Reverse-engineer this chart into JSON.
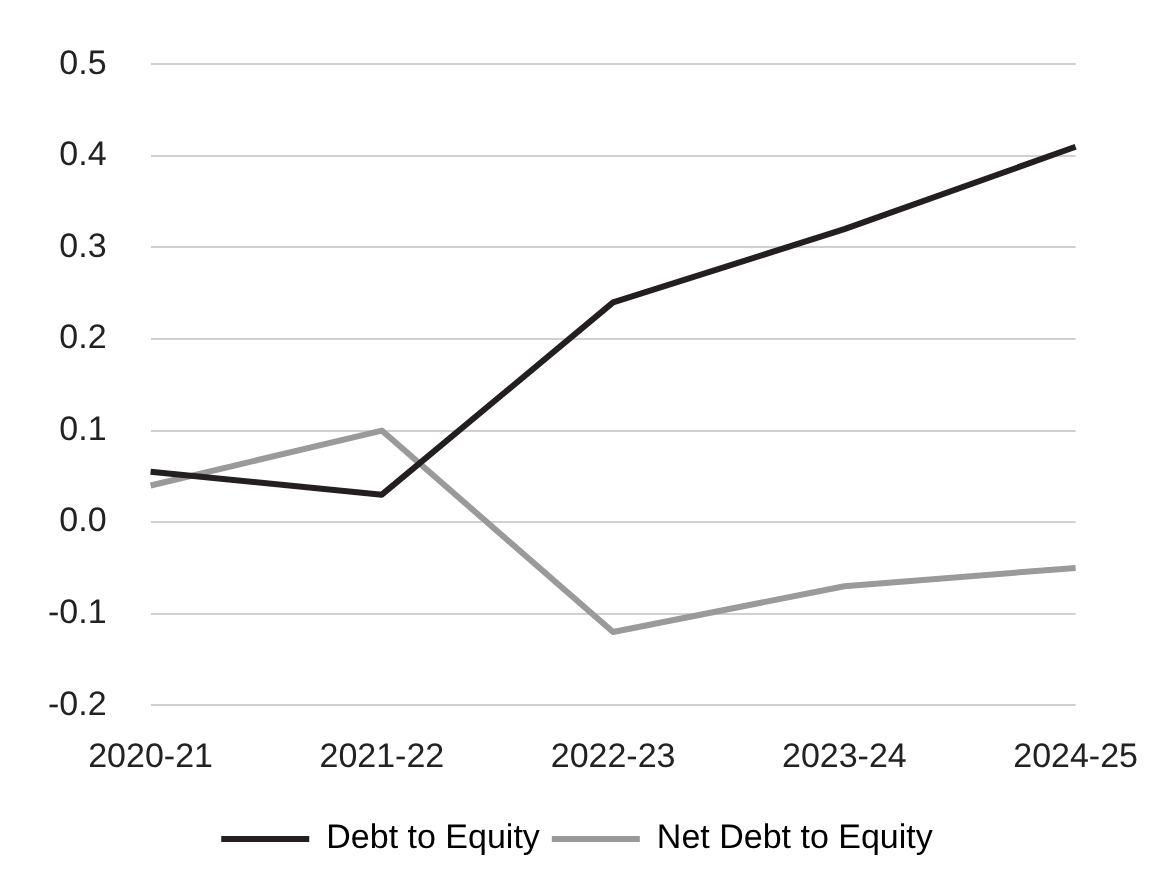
{
  "chart_data": {
    "type": "line",
    "categories": [
      "2020-21",
      "2021-22",
      "2022-23",
      "2023-24",
      "2024-25"
    ],
    "series": [
      {
        "name": "Debt to Equity",
        "color": "#231f20",
        "values": [
          0.055,
          0.03,
          0.24,
          0.32,
          0.41
        ]
      },
      {
        "name": "Net Debt to Equity",
        "color": "#9a9a9a",
        "values": [
          0.04,
          0.1,
          -0.12,
          -0.07,
          -0.05
        ]
      }
    ],
    "ylim": [
      -0.2,
      0.5
    ],
    "yticks": [
      -0.2,
      -0.1,
      {
        "value": 0,
        "label": "0.0"
      },
      0.1,
      0.2,
      0.3,
      0.4,
      0.5
    ],
    "grid": "y",
    "legend": "bottom",
    "marker": "none",
    "line_style": "solid"
  }
}
